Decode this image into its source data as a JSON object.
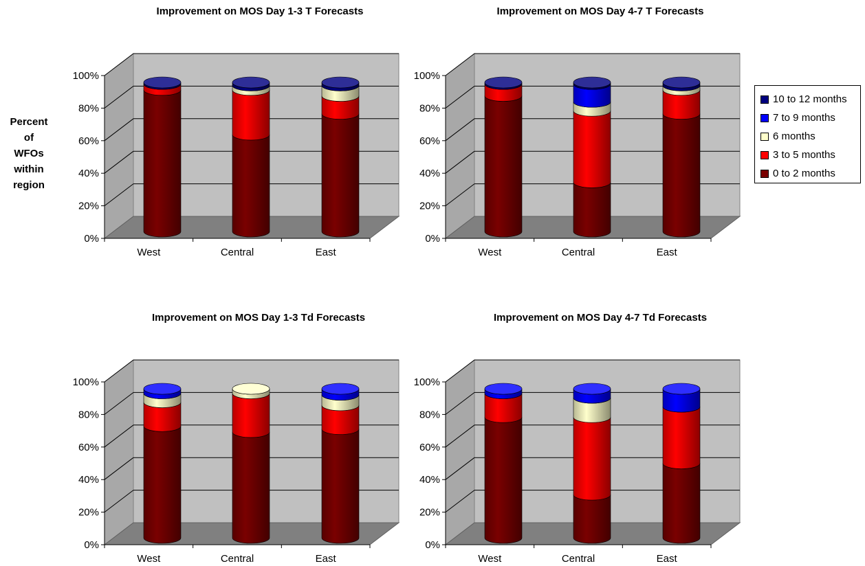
{
  "y_axis_label_lines": [
    "Percent",
    "of",
    "WFOs",
    "within",
    "region"
  ],
  "series_colors": {
    "0 to 2 months": "#7a0000",
    "3 to 5 months": "#ff0000",
    "6 months": "#ffffcc",
    "7 to 9 months": "#0000ff",
    "10 to 12 months": "#000080"
  },
  "legend": {
    "items": [
      "10 to 12 months",
      "7 to 9 months",
      "6 months",
      "3 to 5 months",
      "0 to 2 months"
    ],
    "position": "right"
  },
  "chart_data": [
    {
      "type": "bar",
      "stacked": "percent",
      "style": "3d-cylinder",
      "title": "Improvement on MOS Day 1-3 T Forecasts",
      "categories": [
        "West",
        "Central",
        "East"
      ],
      "yticks": [
        "0%",
        "20%",
        "40%",
        "60%",
        "80%",
        "100%"
      ],
      "ylim": [
        0,
        100
      ],
      "grid": true,
      "series": [
        {
          "name": "0 to 2 months",
          "values": [
            95,
            65,
            79
          ]
        },
        {
          "name": "3 to 5 months",
          "values": [
            4,
            30,
            12
          ]
        },
        {
          "name": "6 months",
          "values": [
            0,
            3,
            7
          ]
        },
        {
          "name": "7 to 9 months",
          "values": [
            0,
            0,
            0
          ]
        },
        {
          "name": "10 to 12 months",
          "values": [
            1,
            2,
            2
          ]
        }
      ]
    },
    {
      "type": "bar",
      "stacked": "percent",
      "style": "3d-cylinder",
      "title": "Improvement on MOS Day 4-7 T Forecasts",
      "categories": [
        "West",
        "Central",
        "East"
      ],
      "yticks": [
        "0%",
        "20%",
        "40%",
        "60%",
        "80%",
        "100%"
      ],
      "ylim": [
        0,
        100
      ],
      "grid": true,
      "series": [
        {
          "name": "0 to 2 months",
          "values": [
            91,
            33,
            79
          ]
        },
        {
          "name": "3 to 5 months",
          "values": [
            8,
            48,
            16
          ]
        },
        {
          "name": "6 months",
          "values": [
            0,
            6,
            3
          ]
        },
        {
          "name": "7 to 9 months",
          "values": [
            0,
            12,
            0
          ]
        },
        {
          "name": "10 to 12 months",
          "values": [
            1,
            1,
            2
          ]
        }
      ]
    },
    {
      "type": "bar",
      "stacked": "percent",
      "style": "3d-cylinder",
      "title": "Improvement on MOS  Day 1-3 Td Forecasts",
      "categories": [
        "West",
        "Central",
        "East"
      ],
      "yticks": [
        "0%",
        "20%",
        "40%",
        "60%",
        "80%",
        "100%"
      ],
      "ylim": [
        0,
        100
      ],
      "grid": true,
      "series": [
        {
          "name": "0 to 2 months",
          "values": [
            75,
            71,
            73
          ]
        },
        {
          "name": "3 to 5 months",
          "values": [
            16,
            26,
            16
          ]
        },
        {
          "name": "6 months",
          "values": [
            6,
            3,
            7
          ]
        },
        {
          "name": "7 to 9 months",
          "values": [
            3,
            0,
            4
          ]
        },
        {
          "name": "10 to 12 months",
          "values": [
            0,
            0,
            0
          ]
        }
      ]
    },
    {
      "type": "bar",
      "stacked": "percent",
      "style": "3d-cylinder",
      "title": "Improvement on MOS Day 4-7 Td Forecasts",
      "categories": [
        "West",
        "Central",
        "East"
      ],
      "yticks": [
        "0%",
        "20%",
        "40%",
        "60%",
        "80%",
        "100%"
      ],
      "ylim": [
        0,
        100
      ],
      "grid": true,
      "series": [
        {
          "name": "0 to 2 months",
          "values": [
            81,
            29,
            50
          ]
        },
        {
          "name": "3 to 5 months",
          "values": [
            16,
            52,
            38
          ]
        },
        {
          "name": "6 months",
          "values": [
            0,
            13,
            0
          ]
        },
        {
          "name": "7 to 9 months",
          "values": [
            3,
            6,
            12
          ]
        },
        {
          "name": "10 to 12 months",
          "values": [
            0,
            0,
            0
          ]
        }
      ]
    }
  ]
}
